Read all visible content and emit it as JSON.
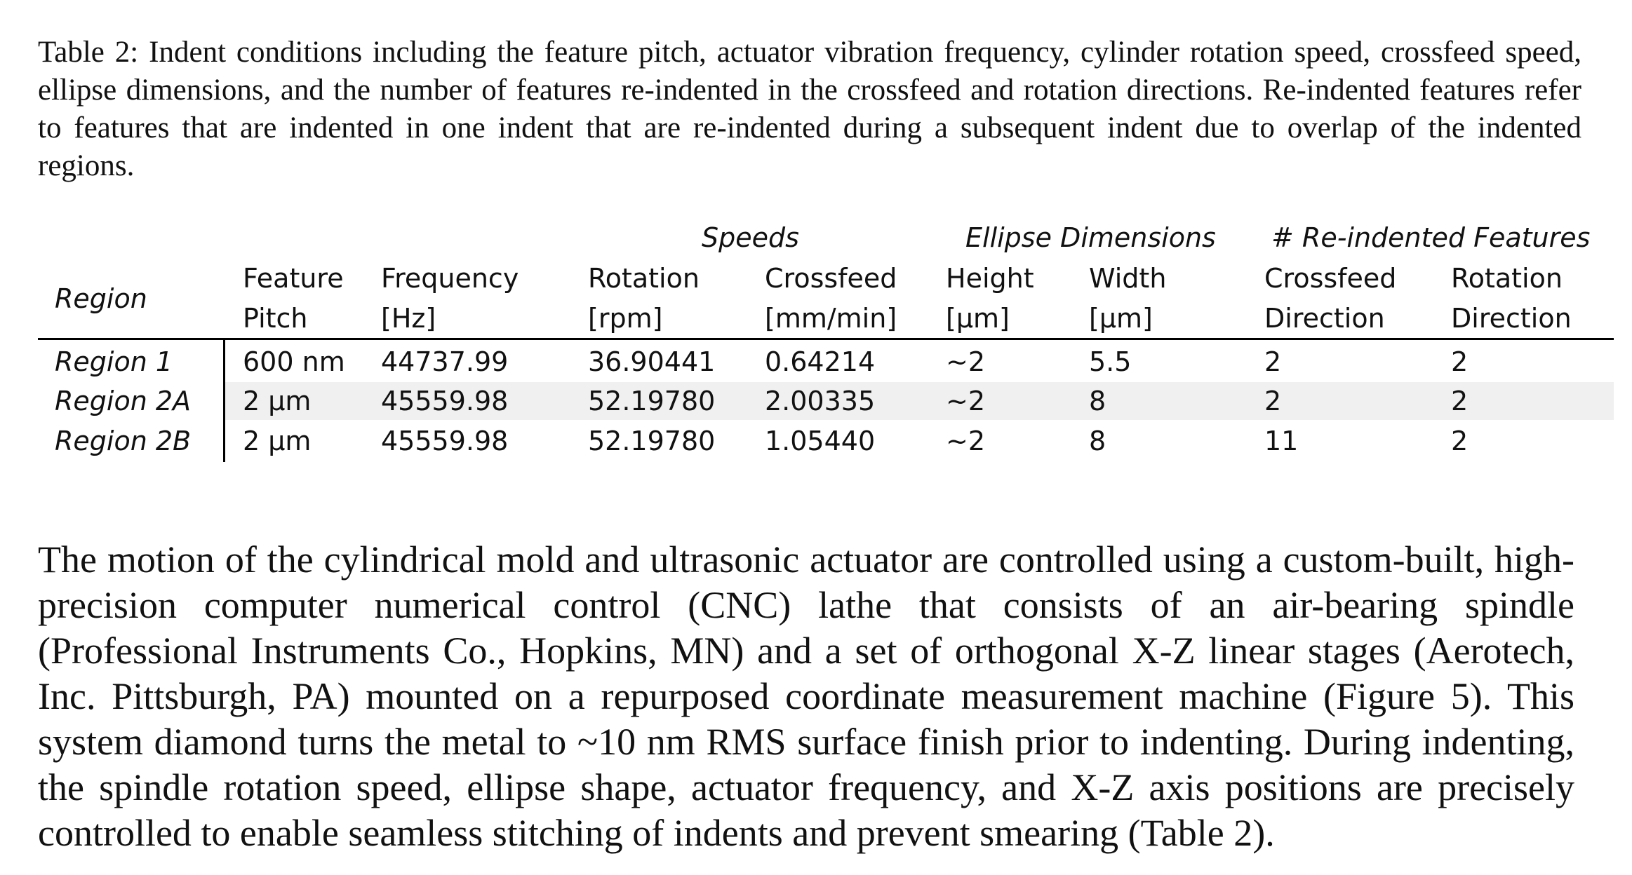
{
  "caption": "Table 2: Indent conditions including the feature pitch, actuator vibration frequency, cylinder rotation speed, crossfeed speed, ellipse dimensions, and the number of features re-indented in the crossfeed and rotation directions. Re-indented features refer to features that are indented in one indent that are re-indented during a subsequent indent due to overlap of the indented regions.",
  "table": {
    "group_headers": {
      "speeds": "Speeds",
      "ellipse": "Ellipse Dimensions",
      "reindented": "# Re-indented Features"
    },
    "columns": {
      "region": "Region",
      "pitch": [
        "Feature",
        "Pitch"
      ],
      "frequency": [
        "Frequency",
        "[Hz]"
      ],
      "rotation": [
        "Rotation",
        "[rpm]"
      ],
      "crossfeed": [
        "Crossfeed",
        "[mm/min]"
      ],
      "height": [
        "Height",
        "[µm]"
      ],
      "width": [
        "Width",
        "[µm]"
      ],
      "cf_dir": [
        "Crossfeed",
        "Direction"
      ],
      "rot_dir": [
        "Rotation",
        "Direction"
      ]
    },
    "rows": [
      {
        "region": "Region 1",
        "pitch": "600 nm",
        "frequency": "44737.99",
        "rotation": "36.90441",
        "crossfeed": "0.64214",
        "height": "~2",
        "width": "5.5",
        "cf_dir": "2",
        "rot_dir": "2"
      },
      {
        "region": "Region 2A",
        "pitch": "2 µm",
        "frequency": "45559.98",
        "rotation": "52.19780",
        "crossfeed": "2.00335",
        "height": "~2",
        "width": "8",
        "cf_dir": "2",
        "rot_dir": "2"
      },
      {
        "region": "Region 2B",
        "pitch": "2 µm",
        "frequency": "45559.98",
        "rotation": "52.19780",
        "crossfeed": "1.05440",
        "height": "~2",
        "width": "8",
        "cf_dir": "11",
        "rot_dir": "2"
      }
    ]
  },
  "body": "The motion of the cylindrical mold and ultrasonic actuator are controlled using a custom-built, high-precision computer numerical control (CNC) lathe that consists of an air-bearing spindle (Professional Instruments Co., Hopkins, MN) and a set of orthogonal X-Z linear stages (Aerotech, Inc. Pittsburgh, PA) mounted on a repurposed coordinate measurement machine (Figure 5). This system diamond turns the metal to ~10 nm RMS surface finish prior to indenting. During indenting, the spindle rotation speed, ellipse shape, actuator frequency, and X-Z axis positions are precisely controlled to enable seamless stitching of indents and prevent smearing (Table 2)."
}
